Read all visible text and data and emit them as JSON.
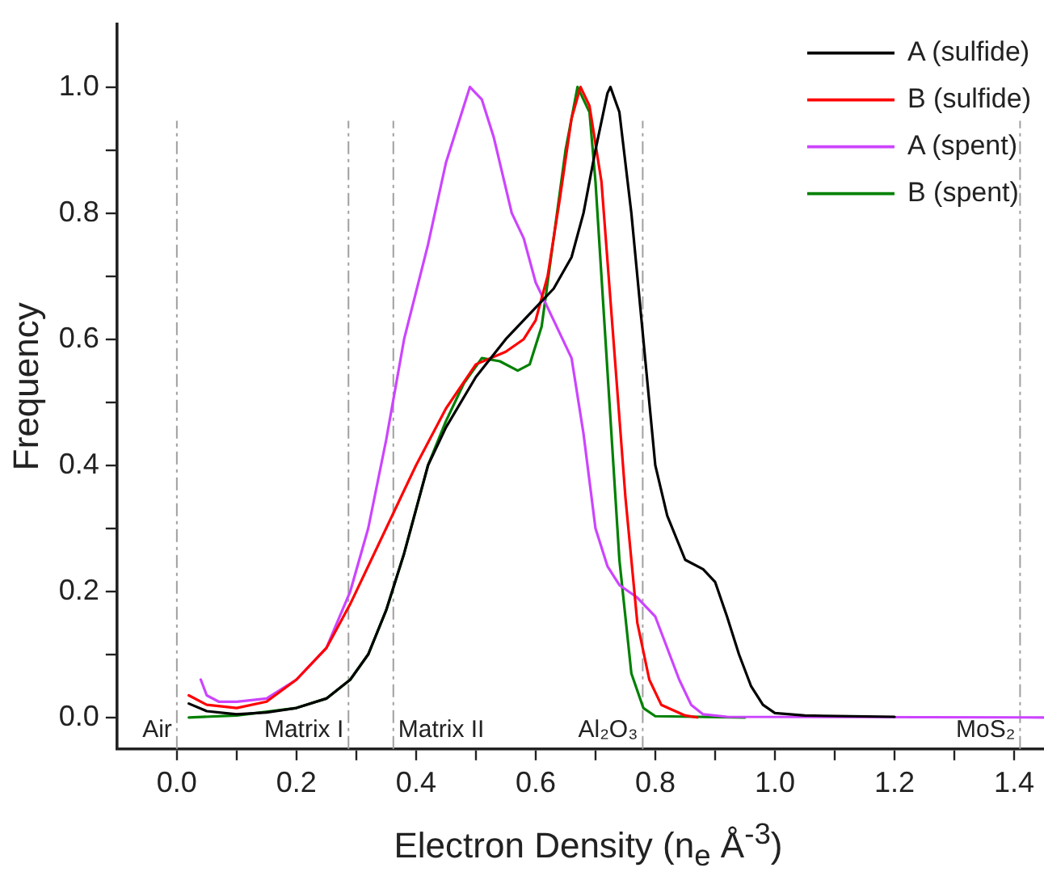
{
  "chart_data": {
    "type": "line",
    "xlabel": "Electron Density (n$_{e}$ Å$^{-3}$)",
    "ylabel": "Frequency",
    "xlim": [
      -0.1,
      1.45
    ],
    "ylim": [
      -0.05,
      1.1
    ],
    "xticks": [
      {
        "value": 0,
        "label": "0.0"
      },
      {
        "value": 0.1,
        "label": null
      },
      {
        "value": 0.2,
        "label": "0.2"
      },
      {
        "value": 0.3,
        "label": null
      },
      {
        "value": 0.4,
        "label": "0.4"
      },
      {
        "value": 0.5,
        "label": null
      },
      {
        "value": 0.6,
        "label": "0.6"
      },
      {
        "value": 0.7,
        "label": null
      },
      {
        "value": 0.8,
        "label": "0.8"
      },
      {
        "value": 0.9,
        "label": null
      },
      {
        "value": 1,
        "label": "1.0"
      },
      {
        "value": 1.1,
        "label": null
      },
      {
        "value": 1.2,
        "label": "1.2"
      },
      {
        "value": 1.3,
        "label": null
      },
      {
        "value": 1.4,
        "label": "1.4"
      }
    ],
    "yticks": [
      {
        "value": 0,
        "label": "0.0"
      },
      {
        "value": 0.1,
        "label": null
      },
      {
        "value": 0.2,
        "label": "0.2"
      },
      {
        "value": 0.3,
        "label": null
      },
      {
        "value": 0.4,
        "label": "0.4"
      },
      {
        "value": 0.5,
        "label": null
      },
      {
        "value": 0.6,
        "label": "0.6"
      },
      {
        "value": 0.7,
        "label": null
      },
      {
        "value": 0.8,
        "label": "0.8"
      },
      {
        "value": 0.9,
        "label": null
      },
      {
        "value": 1,
        "label": "1.0"
      }
    ],
    "grid": false,
    "legend": "top right",
    "marker": "none",
    "line_style": "solid",
    "ref_lines": [
      {
        "axis": "x",
        "value": 0,
        "label": "Air",
        "color": "#a0a0a0",
        "line_style": "dashed"
      },
      {
        "axis": "x",
        "value": 0.287,
        "label": "Matrix I",
        "color": "#a0a0a0",
        "line_style": "dashed"
      },
      {
        "axis": "x",
        "value": 0.362,
        "label": "Matrix II",
        "color": "#a0a0a0",
        "line_style": "dashed"
      },
      {
        "axis": "x",
        "value": 0.779,
        "label": "Al₂O₃",
        "color": "#a0a0a0",
        "line_style": "dashed"
      },
      {
        "axis": "x",
        "value": 1.41,
        "label": "MoS₂",
        "color": "#a0a0a0",
        "line_style": "dashed"
      }
    ],
    "series": [
      {
        "name": "A (sulfide)",
        "color": "#000000",
        "x": [
          0.02,
          0.05,
          0.1,
          0.15,
          0.2,
          0.25,
          0.29,
          0.32,
          0.35,
          0.38,
          0.4,
          0.42,
          0.45,
          0.5,
          0.55,
          0.6,
          0.63,
          0.66,
          0.68,
          0.7,
          0.72,
          0.725,
          0.74,
          0.76,
          0.78,
          0.8,
          0.82,
          0.85,
          0.88,
          0.9,
          0.92,
          0.94,
          0.96,
          0.98,
          1.0,
          1.05,
          1.2
        ],
        "values": [
          0.022,
          0.01,
          0.005,
          0.008,
          0.015,
          0.03,
          0.06,
          0.1,
          0.17,
          0.26,
          0.33,
          0.4,
          0.46,
          0.54,
          0.6,
          0.65,
          0.68,
          0.73,
          0.8,
          0.9,
          0.99,
          1.0,
          0.96,
          0.8,
          0.6,
          0.4,
          0.32,
          0.25,
          0.235,
          0.215,
          0.16,
          0.1,
          0.05,
          0.02,
          0.007,
          0.003,
          0.001
        ]
      },
      {
        "name": "B (sulfide)",
        "color": "#ff0000",
        "x": [
          0.02,
          0.05,
          0.1,
          0.15,
          0.2,
          0.25,
          0.29,
          0.33,
          0.37,
          0.4,
          0.45,
          0.5,
          0.55,
          0.58,
          0.6,
          0.62,
          0.64,
          0.66,
          0.675,
          0.69,
          0.71,
          0.73,
          0.75,
          0.77,
          0.79,
          0.81,
          0.85,
          0.87
        ],
        "values": [
          0.035,
          0.02,
          0.015,
          0.025,
          0.06,
          0.11,
          0.18,
          0.26,
          0.34,
          0.4,
          0.49,
          0.56,
          0.58,
          0.6,
          0.63,
          0.7,
          0.82,
          0.95,
          1.0,
          0.97,
          0.85,
          0.6,
          0.35,
          0.15,
          0.06,
          0.02,
          0.003,
          0
        ]
      },
      {
        "name": "A (spent)",
        "color": "#cc44ff",
        "x": [
          0.04,
          0.05,
          0.07,
          0.1,
          0.15,
          0.2,
          0.25,
          0.29,
          0.32,
          0.35,
          0.38,
          0.42,
          0.45,
          0.48,
          0.49,
          0.51,
          0.53,
          0.56,
          0.58,
          0.6,
          0.62,
          0.64,
          0.66,
          0.68,
          0.7,
          0.72,
          0.74,
          0.77,
          0.8,
          0.82,
          0.84,
          0.86,
          0.88,
          0.92,
          1.45
        ],
        "values": [
          0.06,
          0.035,
          0.025,
          0.025,
          0.03,
          0.06,
          0.11,
          0.2,
          0.3,
          0.44,
          0.6,
          0.75,
          0.88,
          0.97,
          1.0,
          0.98,
          0.92,
          0.8,
          0.76,
          0.69,
          0.65,
          0.61,
          0.57,
          0.45,
          0.3,
          0.24,
          0.21,
          0.19,
          0.16,
          0.11,
          0.06,
          0.02,
          0.005,
          0.001,
          0
        ]
      },
      {
        "name": "B (spent)",
        "color": "#008000",
        "x": [
          0.02,
          0.1,
          0.2,
          0.25,
          0.29,
          0.32,
          0.35,
          0.38,
          0.4,
          0.42,
          0.45,
          0.48,
          0.51,
          0.54,
          0.57,
          0.59,
          0.61,
          0.63,
          0.65,
          0.67,
          0.69,
          0.7,
          0.72,
          0.74,
          0.76,
          0.78,
          0.8,
          0.95
        ],
        "values": [
          0,
          0.003,
          0.015,
          0.03,
          0.06,
          0.1,
          0.17,
          0.26,
          0.33,
          0.4,
          0.47,
          0.53,
          0.57,
          0.565,
          0.55,
          0.56,
          0.62,
          0.76,
          0.9,
          1.0,
          0.96,
          0.85,
          0.55,
          0.25,
          0.07,
          0.015,
          0.002,
          0
        ]
      }
    ]
  }
}
